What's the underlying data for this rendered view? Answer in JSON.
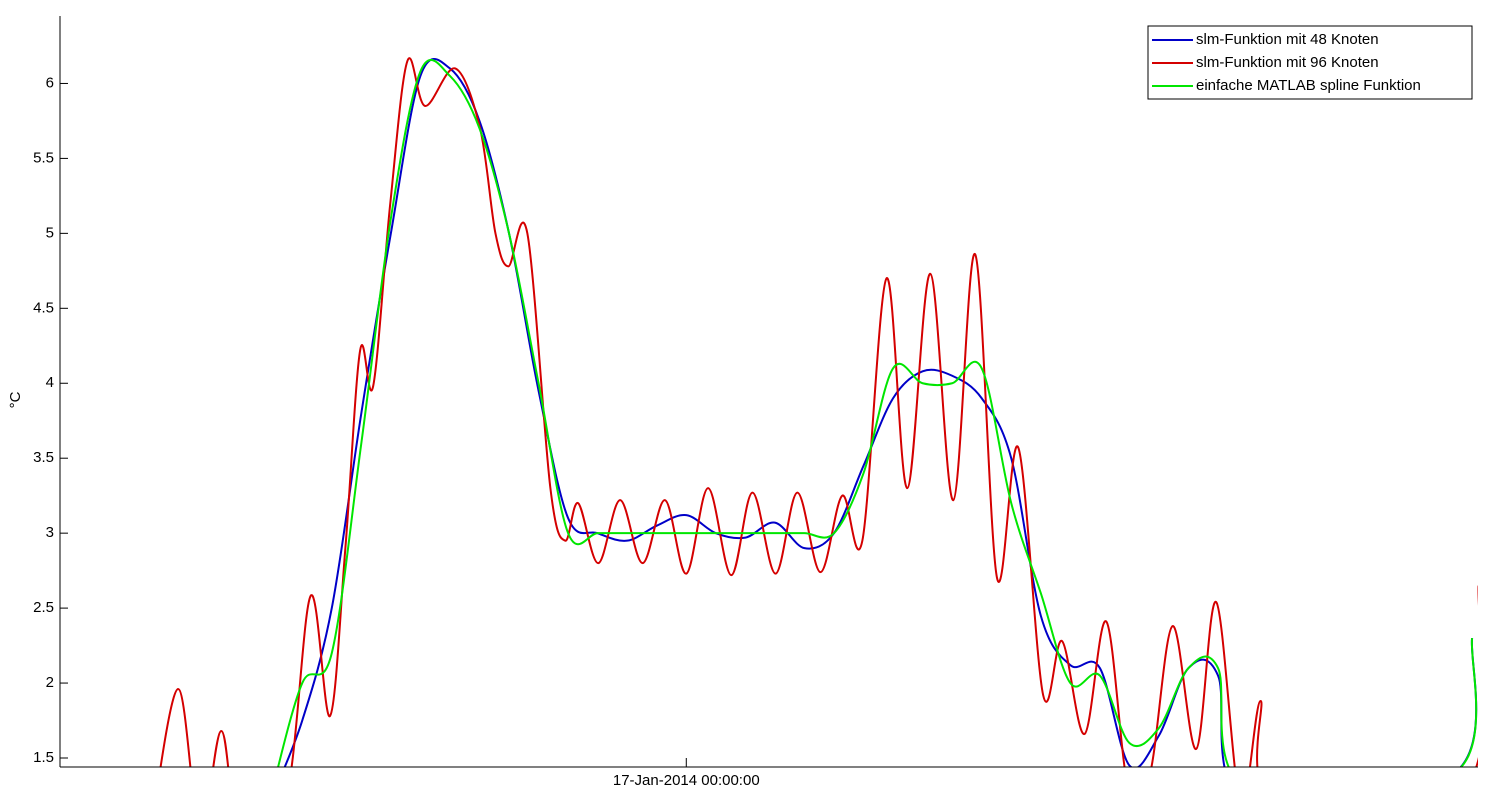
{
  "chart_data": {
    "type": "line",
    "y_label": "°C",
    "xlim": [
      -10.6,
      13.4
    ],
    "xticks": [
      {
        "value": 0,
        "label": "17-Jan-2014 00:00:00"
      }
    ],
    "ylim": [
      1.44,
      6.45
    ],
    "yticks": [
      1.5,
      2,
      2.5,
      3,
      3.5,
      4,
      4.5,
      5,
      5.5,
      6
    ],
    "grid": false,
    "legend": "upper right",
    "series": [
      {
        "name": "slm-Funktion mit 48 Knoten",
        "color": "#0000c8",
        "x": [
          -7,
          -6.5,
          -6,
          -5.5,
          -5,
          -4.5,
          -4,
          -3.5,
          -3,
          -2.5,
          -2,
          -1.5,
          -1,
          -0.5,
          0,
          0.5,
          1,
          1.5,
          2,
          2.5,
          3,
          3.5,
          4,
          4.5,
          5,
          5.5,
          6,
          6.5,
          7,
          7.5,
          8,
          8.5,
          9,
          9.5,
          13,
          13.3
        ],
        "values": [
          1.25,
          1.75,
          2.5,
          3.8,
          5.0,
          6.05,
          6.1,
          5.75,
          5.0,
          3.95,
          3.1,
          3.0,
          2.95,
          3.05,
          3.12,
          3.0,
          2.97,
          3.07,
          2.9,
          3.0,
          3.45,
          3.9,
          4.08,
          4.05,
          3.9,
          3.5,
          2.45,
          2.12,
          2.1,
          1.45,
          1.65,
          2.1,
          2.05,
          1.2,
          1.4,
          2.3
        ]
      },
      {
        "name": "slm-Funktion mit 96 Knoten",
        "color": "#d40000",
        "x": [
          -9.07,
          -8.6,
          -8.23,
          -7.87,
          -7.55,
          -6.79,
          -6.36,
          -6.03,
          -5.77,
          -5.52,
          -5.3,
          -5.01,
          -4.72,
          -4.42,
          -3.91,
          -3.49,
          -3.23,
          -3.01,
          -2.69,
          -2.3,
          -2.05,
          -1.83,
          -1.49,
          -1.12,
          -0.74,
          -0.36,
          0,
          0.37,
          0.76,
          1.12,
          1.51,
          1.88,
          2.27,
          2.64,
          2.98,
          3.39,
          3.74,
          4.13,
          4.52,
          4.89,
          5.26,
          5.62,
          6.04,
          6.36,
          6.74,
          7.11,
          7.48,
          7.85,
          8.23,
          8.63,
          8.97,
          9.38,
          9.72,
          9.97,
          13.18,
          13.41
        ],
        "values": [
          1.0,
          1.96,
          1.0,
          1.68,
          1.0,
          1.2,
          2.58,
          1.78,
          2.9,
          4.22,
          3.98,
          5.2,
          6.15,
          5.85,
          6.1,
          5.7,
          5.0,
          4.78,
          5.0,
          3.3,
          2.95,
          3.2,
          2.8,
          3.22,
          2.8,
          3.22,
          2.73,
          3.3,
          2.72,
          3.27,
          2.73,
          3.27,
          2.74,
          3.25,
          2.95,
          4.7,
          3.3,
          4.73,
          3.22,
          4.86,
          2.7,
          3.57,
          1.92,
          2.28,
          1.66,
          2.41,
          1.3,
          1.4,
          2.38,
          1.56,
          2.54,
          1.2,
          1.88,
          1.2,
          1.3,
          2.65
        ]
      },
      {
        "name": "einfache MATLAB spline Funktion",
        "color": "#00e600",
        "x": [
          -7,
          -6.5,
          -6,
          -5.5,
          -5,
          -4.5,
          -4,
          -3.5,
          -3,
          -2.5,
          -2,
          -1.5,
          -1,
          -0.5,
          0,
          0.5,
          1,
          1.5,
          2,
          2.5,
          3,
          3.5,
          4,
          4.5,
          5,
          5.5,
          6,
          6.5,
          7,
          7.5,
          8,
          8.5,
          9,
          9.5,
          13,
          13.3
        ],
        "values": [
          1.3,
          2.0,
          2.2,
          3.6,
          5.1,
          6.08,
          6.05,
          5.7,
          5.0,
          4.0,
          3.0,
          3.0,
          3.0,
          3.0,
          3.0,
          3.0,
          3.0,
          3.0,
          3.0,
          3.0,
          3.4,
          4.1,
          4.0,
          4.0,
          4.1,
          3.2,
          2.6,
          2.0,
          2.05,
          1.6,
          1.7,
          2.1,
          2.1,
          1.3,
          1.4,
          2.3
        ]
      }
    ]
  }
}
